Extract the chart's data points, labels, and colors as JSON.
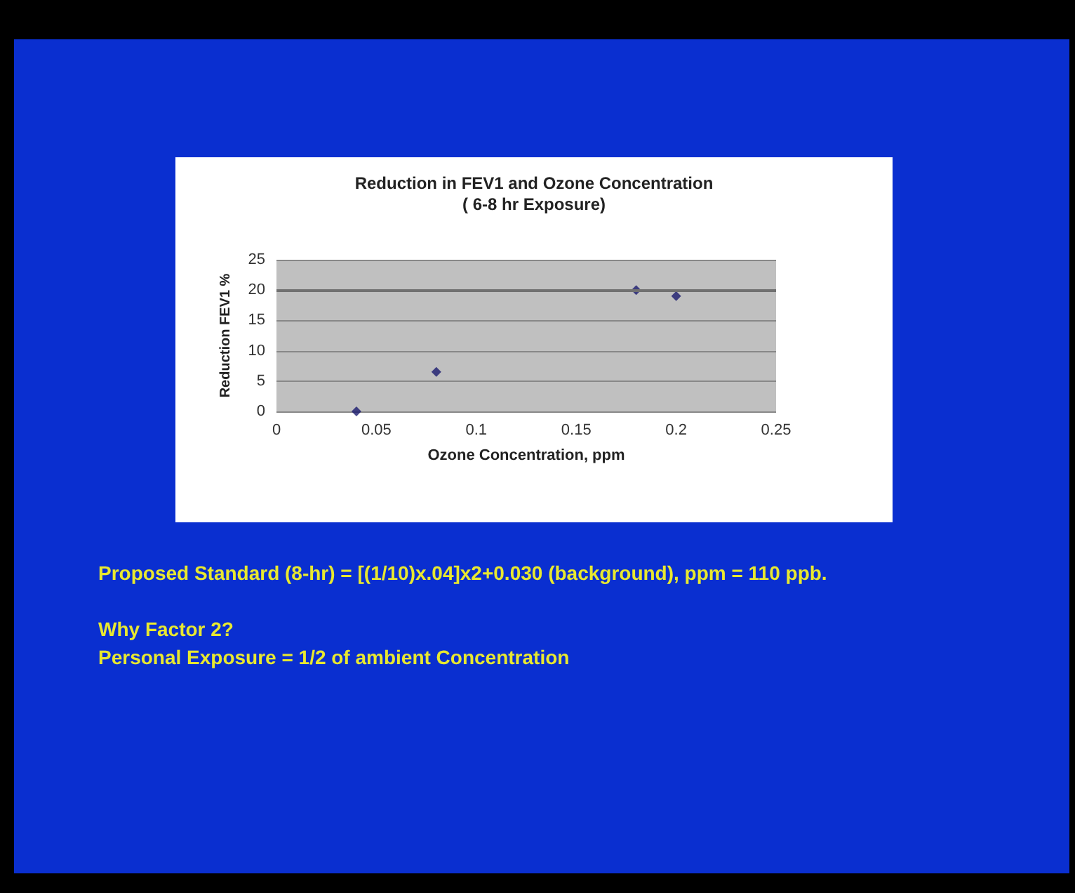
{
  "chart_data": {
    "type": "scatter",
    "title": "Reduction in FEV1 and Ozone Concentration\n( 6-8 hr Exposure)",
    "xlabel": "Ozone Concentration, ppm",
    "ylabel": "Reduction FEV1 %",
    "x": [
      0.04,
      0.08,
      0.18,
      0.2
    ],
    "values": [
      0,
      6.5,
      20,
      19
    ],
    "color": "#1a1a6e",
    "xlim": [
      0,
      0.25
    ],
    "xticks": [
      0,
      0.05,
      0.1,
      0.15,
      0.2,
      0.25
    ],
    "ylim": [
      0,
      25
    ],
    "yticks": [
      0,
      5,
      10,
      15,
      20,
      25
    ],
    "grid": "y",
    "marker": "diamond",
    "ref_lines": [
      {
        "axis": "y",
        "value": 20,
        "color": "#707070"
      }
    ],
    "annotations": [
      "Proposed Standard (8-hr) = [(1/10)x.04]x2+0.030 (background), ppm = 110 ppb.",
      "Why Factor 2?",
      "Personal Exposure = 1/2 of ambient Concentration"
    ]
  }
}
